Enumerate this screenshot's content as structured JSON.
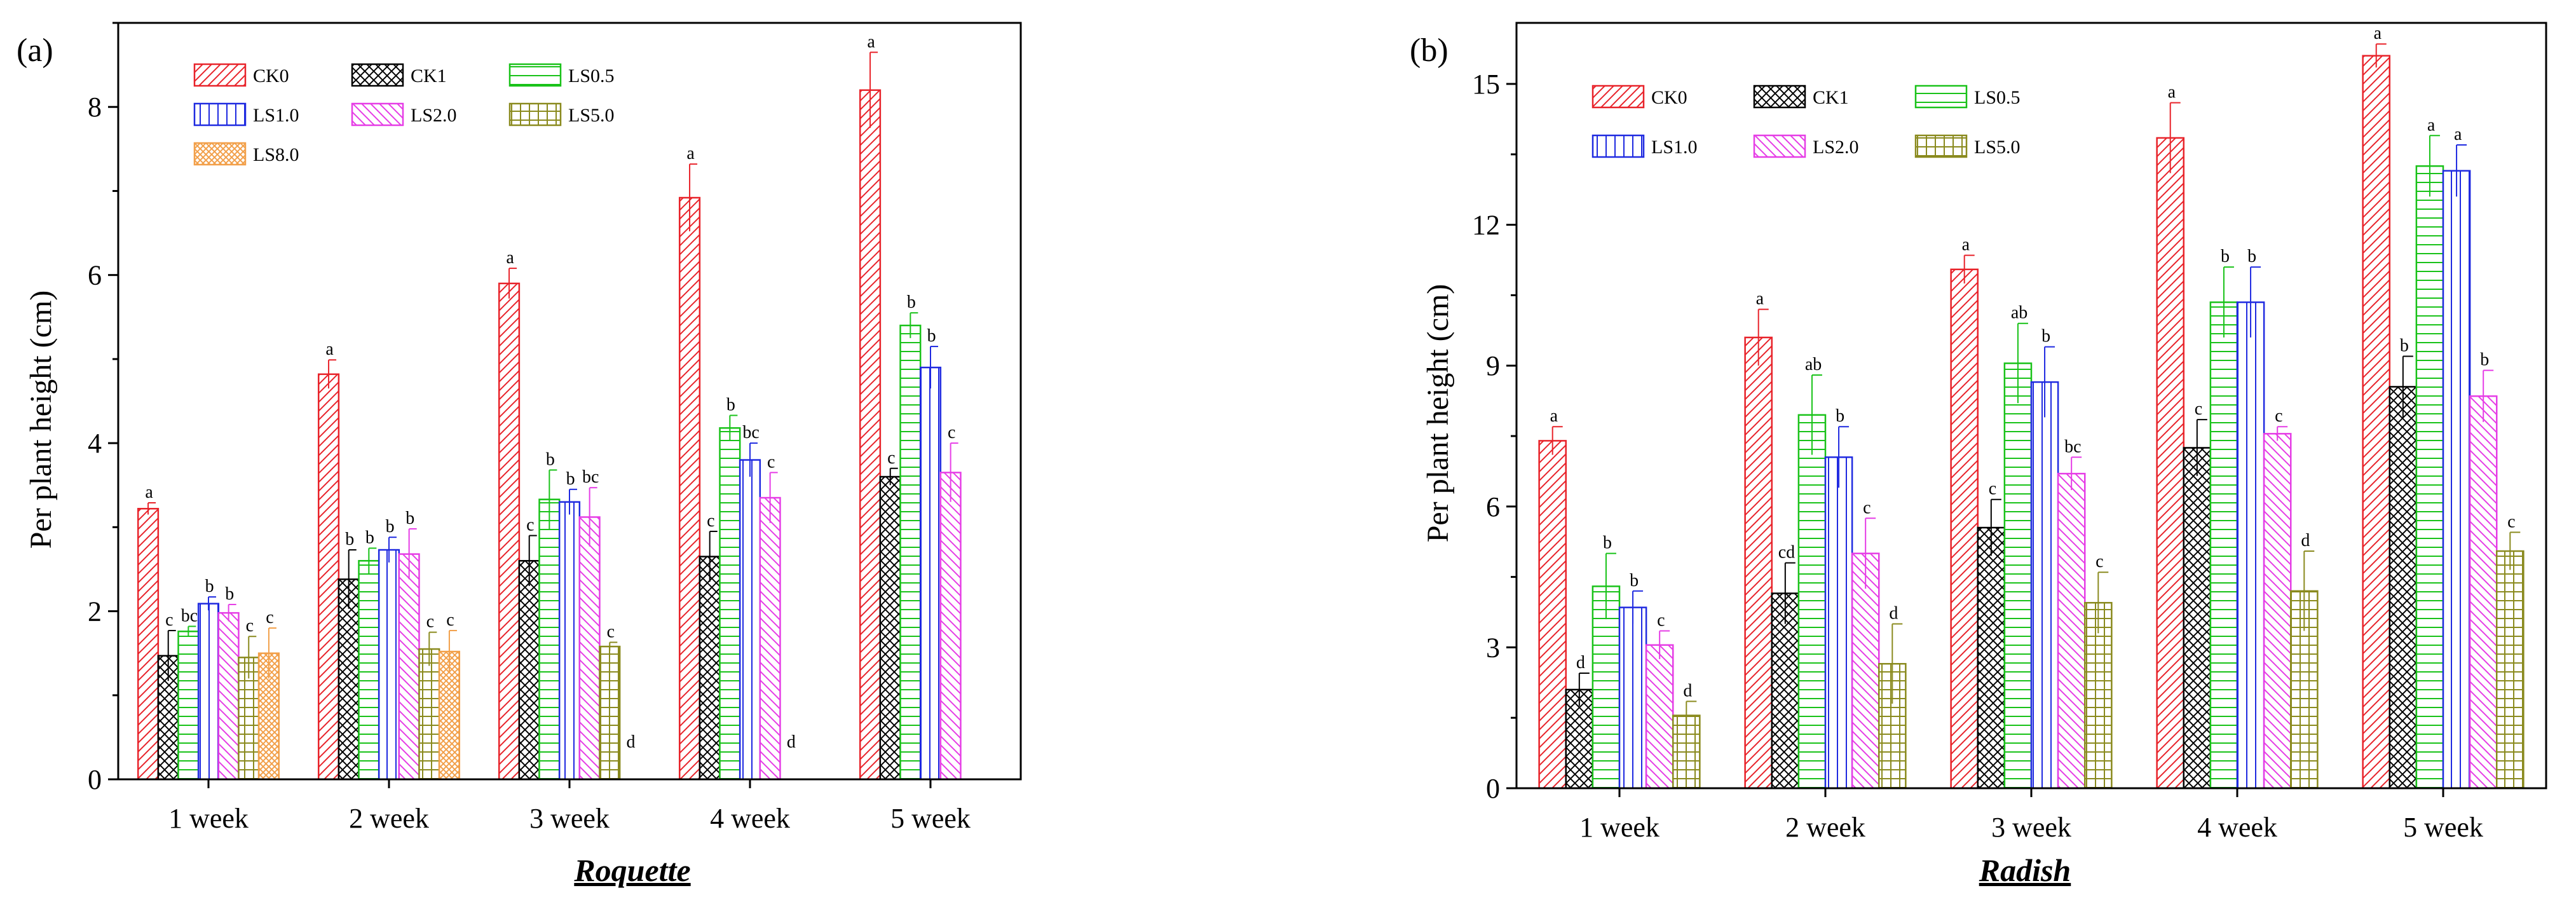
{
  "chart_data": [
    {
      "type": "bar",
      "panel_label": "(a)",
      "title": "Roquette",
      "xlabel": "",
      "ylabel": "Per plant height (cm)",
      "ylim": [
        0,
        9
      ],
      "yticks": [
        "0",
        "2",
        "4",
        "6",
        "8"
      ],
      "ytick_values": [
        0,
        2,
        4,
        6,
        8
      ],
      "categories": [
        "1 week",
        "2 week",
        "3 week",
        "4 week",
        "5 week"
      ],
      "grid": false,
      "legend_position": "top-left",
      "legend_columns": 3,
      "series": [
        {
          "name": "CK0",
          "color": "#e8232a",
          "pattern": "diag-fwd",
          "values": [
            3.22,
            4.82,
            5.9,
            6.92,
            8.2
          ],
          "errors": [
            0.07,
            0.17,
            0.18,
            0.4,
            0.45
          ],
          "labels": [
            "a",
            "a",
            "a",
            "a",
            "a"
          ]
        },
        {
          "name": "CK1",
          "color": "#000000",
          "pattern": "cross",
          "values": [
            1.47,
            2.38,
            2.6,
            2.65,
            3.6
          ],
          "errors": [
            0.3,
            0.35,
            0.3,
            0.3,
            0.1
          ],
          "labels": [
            "c",
            "b",
            "c",
            "c",
            "c"
          ]
        },
        {
          "name": "LS0.5",
          "color": "#19c219",
          "pattern": "horiz",
          "values": [
            1.76,
            2.6,
            3.33,
            4.18,
            5.4
          ],
          "errors": [
            0.06,
            0.15,
            0.35,
            0.15,
            0.15
          ],
          "labels": [
            "bc",
            "b",
            "b",
            "b",
            "b"
          ]
        },
        {
          "name": "LS1.0",
          "color": "#1f2ae0",
          "pattern": "vert",
          "values": [
            2.09,
            2.73,
            3.3,
            3.8,
            4.9
          ],
          "errors": [
            0.08,
            0.15,
            0.15,
            0.2,
            0.25
          ],
          "labels": [
            "b",
            "b",
            "b",
            "bc",
            "b"
          ]
        },
        {
          "name": "LS2.0",
          "color": "#e63de6",
          "pattern": "diag-back",
          "values": [
            1.98,
            2.68,
            3.12,
            3.35,
            3.65
          ],
          "errors": [
            0.1,
            0.3,
            0.35,
            0.3,
            0.35
          ],
          "labels": [
            "b",
            "b",
            "bc",
            "c",
            "c"
          ]
        },
        {
          "name": "LS5.0",
          "color": "#8a8a1e",
          "pattern": "grid",
          "values": [
            1.45,
            1.55,
            1.58,
            0,
            0
          ],
          "errors": [
            0.25,
            0.2,
            0.05,
            0,
            0
          ],
          "labels": [
            "c",
            "c",
            "c",
            "d",
            ""
          ]
        },
        {
          "name": "LS8.0",
          "color": "#f2a04a",
          "pattern": "cross-fine",
          "values": [
            1.5,
            1.52,
            0,
            0,
            0
          ],
          "errors": [
            0.3,
            0.25,
            0,
            0,
            0
          ],
          "labels": [
            "c",
            "c",
            "d",
            "",
            ""
          ]
        }
      ]
    },
    {
      "type": "bar",
      "panel_label": "(b)",
      "title": "Radish",
      "xlabel": "",
      "ylabel": "Per plant height (cm)",
      "ylim": [
        0,
        16.3
      ],
      "yticks": [
        "0",
        "3",
        "6",
        "9",
        "12",
        "15"
      ],
      "ytick_values": [
        0,
        3,
        6,
        9,
        12,
        15
      ],
      "categories": [
        "1 week",
        "2 week",
        "3 week",
        "4 week",
        "5 week"
      ],
      "grid": false,
      "legend_position": "top-left",
      "legend_columns": 3,
      "series": [
        {
          "name": "CK0",
          "color": "#e8232a",
          "pattern": "diag-fwd",
          "values": [
            7.4,
            9.6,
            11.05,
            13.85,
            15.6
          ],
          "errors": [
            0.3,
            0.6,
            0.3,
            0.75,
            0.25
          ],
          "labels": [
            "a",
            "a",
            "a",
            "a",
            "a"
          ]
        },
        {
          "name": "CK1",
          "color": "#000000",
          "pattern": "cross",
          "values": [
            2.1,
            4.15,
            5.55,
            7.25,
            8.55
          ],
          "errors": [
            0.35,
            0.65,
            0.6,
            0.6,
            0.65
          ],
          "labels": [
            "d",
            "cd",
            "c",
            "c",
            "b"
          ]
        },
        {
          "name": "LS0.5",
          "color": "#19c219",
          "pattern": "horiz",
          "values": [
            4.3,
            7.95,
            9.05,
            10.35,
            13.25
          ],
          "errors": [
            0.7,
            0.85,
            0.85,
            0.75,
            0.65
          ],
          "labels": [
            "b",
            "ab",
            "ab",
            "b",
            "a"
          ]
        },
        {
          "name": "LS1.0",
          "color": "#1f2ae0",
          "pattern": "vert",
          "values": [
            3.85,
            7.05,
            8.65,
            10.35,
            13.15
          ],
          "errors": [
            0.35,
            0.65,
            0.75,
            0.75,
            0.55
          ],
          "labels": [
            "b",
            "b",
            "b",
            "b",
            "a"
          ]
        },
        {
          "name": "LS2.0",
          "color": "#e63de6",
          "pattern": "diag-back",
          "values": [
            3.05,
            5.0,
            6.7,
            7.55,
            8.35
          ],
          "errors": [
            0.3,
            0.75,
            0.35,
            0.15,
            0.55
          ],
          "labels": [
            "c",
            "c",
            "bc",
            "c",
            "b"
          ]
        },
        {
          "name": "LS5.0",
          "color": "#8a8a1e",
          "pattern": "grid",
          "values": [
            1.55,
            2.65,
            3.95,
            4.2,
            5.05
          ],
          "errors": [
            0.3,
            0.85,
            0.65,
            0.85,
            0.4
          ],
          "labels": [
            "d",
            "d",
            "c",
            "d",
            "c"
          ]
        }
      ]
    }
  ]
}
